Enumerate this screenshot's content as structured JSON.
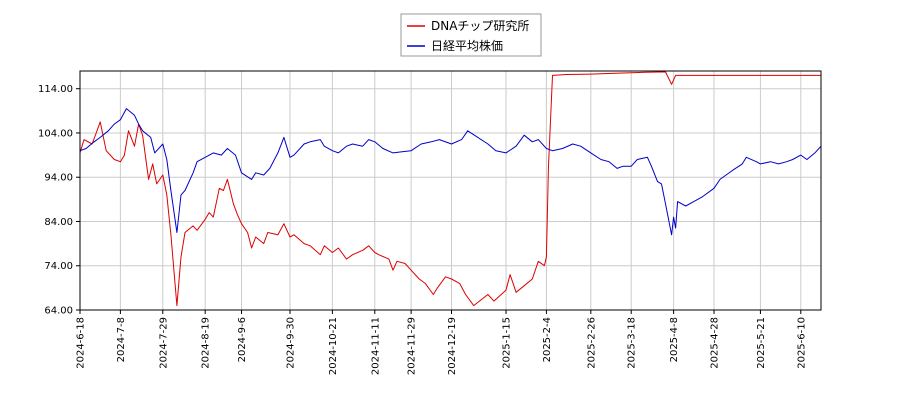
{
  "chart_data": {
    "type": "line",
    "title": "",
    "xlabel": "",
    "ylabel": "",
    "ylim": [
      64,
      118
    ],
    "y_ticks": [
      "64.00",
      "74.00",
      "84.00",
      "94.00",
      "104.00",
      "114.00"
    ],
    "x_ticks": [
      "2024-6-18",
      "2024-7-8",
      "2024-7-29",
      "2024-8-19",
      "2024-9-6",
      "2024-9-30",
      "2024-10-21",
      "2024-11-11",
      "2024-11-29",
      "2024-12-19",
      "2025-1-15",
      "2025-2-4",
      "2025-2-26",
      "2025-3-18",
      "2025-4-8",
      "2025-4-28",
      "2025-5-21",
      "2025-6-10"
    ],
    "x_range": [
      "2024-06-18",
      "2025-06-20"
    ],
    "grid": true,
    "legend_position": "top-center",
    "series": [
      {
        "name": "DNAチップ研究所",
        "color": "#dd0000",
        "points": [
          [
            "2024-06-18",
            99.5
          ],
          [
            "2024-06-20",
            102.5
          ],
          [
            "2024-06-24",
            101.5
          ],
          [
            "2024-06-26",
            104.0
          ],
          [
            "2024-06-28",
            106.5
          ],
          [
            "2024-07-01",
            100.0
          ],
          [
            "2024-07-03",
            99.0
          ],
          [
            "2024-07-05",
            98.0
          ],
          [
            "2024-07-08",
            97.5
          ],
          [
            "2024-07-10",
            99.0
          ],
          [
            "2024-07-12",
            104.5
          ],
          [
            "2024-07-15",
            101.0
          ],
          [
            "2024-07-17",
            106.0
          ],
          [
            "2024-07-19",
            103.5
          ],
          [
            "2024-07-22",
            93.5
          ],
          [
            "2024-07-24",
            97.0
          ],
          [
            "2024-07-26",
            92.5
          ],
          [
            "2024-07-29",
            94.5
          ],
          [
            "2024-07-31",
            90.0
          ],
          [
            "2024-08-02",
            81.0
          ],
          [
            "2024-08-05",
            65.0
          ],
          [
            "2024-08-07",
            76.0
          ],
          [
            "2024-08-09",
            81.5
          ],
          [
            "2024-08-13",
            83.0
          ],
          [
            "2024-08-15",
            82.0
          ],
          [
            "2024-08-19",
            84.5
          ],
          [
            "2024-08-21",
            86.0
          ],
          [
            "2024-08-23",
            85.0
          ],
          [
            "2024-08-26",
            91.5
          ],
          [
            "2024-08-28",
            91.0
          ],
          [
            "2024-08-30",
            93.5
          ],
          [
            "2024-09-02",
            88.0
          ],
          [
            "2024-09-04",
            85.5
          ],
          [
            "2024-09-06",
            83.5
          ],
          [
            "2024-09-09",
            81.5
          ],
          [
            "2024-09-11",
            78.0
          ],
          [
            "2024-09-13",
            80.5
          ],
          [
            "2024-09-17",
            79.0
          ],
          [
            "2024-09-19",
            81.5
          ],
          [
            "2024-09-24",
            81.0
          ],
          [
            "2024-09-27",
            83.5
          ],
          [
            "2024-09-30",
            80.5
          ],
          [
            "2024-10-02",
            81.0
          ],
          [
            "2024-10-07",
            79.0
          ],
          [
            "2024-10-10",
            78.5
          ],
          [
            "2024-10-15",
            76.5
          ],
          [
            "2024-10-17",
            78.5
          ],
          [
            "2024-10-21",
            77.0
          ],
          [
            "2024-10-24",
            78.0
          ],
          [
            "2024-10-28",
            75.5
          ],
          [
            "2024-10-31",
            76.5
          ],
          [
            "2024-11-05",
            77.5
          ],
          [
            "2024-11-08",
            78.5
          ],
          [
            "2024-11-11",
            77.0
          ],
          [
            "2024-11-13",
            76.5
          ],
          [
            "2024-11-18",
            75.5
          ],
          [
            "2024-11-20",
            73.0
          ],
          [
            "2024-11-22",
            75.0
          ],
          [
            "2024-11-26",
            74.5
          ],
          [
            "2024-11-29",
            73.0
          ],
          [
            "2024-12-03",
            71.0
          ],
          [
            "2024-12-06",
            70.0
          ],
          [
            "2024-12-10",
            67.5
          ],
          [
            "2024-12-12",
            69.0
          ],
          [
            "2024-12-16",
            71.5
          ],
          [
            "2024-12-19",
            71.0
          ],
          [
            "2024-12-23",
            70.0
          ],
          [
            "2024-12-26",
            67.5
          ],
          [
            "2024-12-30",
            65.0
          ],
          [
            "2025-01-06",
            67.5
          ],
          [
            "2025-01-09",
            66.0
          ],
          [
            "2025-01-15",
            68.5
          ],
          [
            "2025-01-17",
            72.0
          ],
          [
            "2025-01-20",
            68.0
          ],
          [
            "2025-01-24",
            69.5
          ],
          [
            "2025-01-28",
            71.0
          ],
          [
            "2025-01-31",
            75.0
          ],
          [
            "2025-02-03",
            74.0
          ],
          [
            "2025-02-04",
            76.0
          ],
          [
            "2025-02-05",
            96.0
          ],
          [
            "2025-02-07",
            117.0
          ],
          [
            "2025-02-14",
            117.2
          ],
          [
            "2025-02-26",
            117.3
          ],
          [
            "2025-03-10",
            117.5
          ],
          [
            "2025-03-25",
            117.7
          ],
          [
            "2025-04-04",
            117.8
          ],
          [
            "2025-04-07",
            115.0
          ],
          [
            "2025-04-09",
            117.0
          ],
          [
            "2025-04-28",
            117.0
          ],
          [
            "2025-05-21",
            117.0
          ],
          [
            "2025-06-20",
            117.0
          ]
        ]
      },
      {
        "name": "日経平均株価",
        "color": "#0000cc",
        "points": [
          [
            "2024-06-18",
            100.0
          ],
          [
            "2024-06-21",
            100.5
          ],
          [
            "2024-06-25",
            102.0
          ],
          [
            "2024-06-28",
            103.0
          ],
          [
            "2024-07-02",
            104.5
          ],
          [
            "2024-07-05",
            106.0
          ],
          [
            "2024-07-08",
            107.0
          ],
          [
            "2024-07-11",
            109.5
          ],
          [
            "2024-07-15",
            108.0
          ],
          [
            "2024-07-17",
            106.0
          ],
          [
            "2024-07-19",
            104.5
          ],
          [
            "2024-07-23",
            103.0
          ],
          [
            "2024-07-25",
            99.5
          ],
          [
            "2024-07-29",
            101.5
          ],
          [
            "2024-07-31",
            98.0
          ],
          [
            "2024-08-02",
            91.0
          ],
          [
            "2024-08-05",
            81.5
          ],
          [
            "2024-08-07",
            90.0
          ],
          [
            "2024-08-09",
            91.0
          ],
          [
            "2024-08-13",
            95.0
          ],
          [
            "2024-08-15",
            97.5
          ],
          [
            "2024-08-19",
            98.5
          ],
          [
            "2024-08-23",
            99.5
          ],
          [
            "2024-08-27",
            99.0
          ],
          [
            "2024-08-30",
            100.5
          ],
          [
            "2024-09-03",
            99.0
          ],
          [
            "2024-09-06",
            95.0
          ],
          [
            "2024-09-11",
            93.5
          ],
          [
            "2024-09-13",
            95.0
          ],
          [
            "2024-09-17",
            94.5
          ],
          [
            "2024-09-20",
            96.0
          ],
          [
            "2024-09-24",
            99.5
          ],
          [
            "2024-09-27",
            103.0
          ],
          [
            "2024-09-30",
            98.5
          ],
          [
            "2024-10-02",
            99.0
          ],
          [
            "2024-10-07",
            101.5
          ],
          [
            "2024-10-10",
            102.0
          ],
          [
            "2024-10-15",
            102.5
          ],
          [
            "2024-10-17",
            101.0
          ],
          [
            "2024-10-21",
            100.0
          ],
          [
            "2024-10-24",
            99.5
          ],
          [
            "2024-10-28",
            101.0
          ],
          [
            "2024-10-31",
            101.5
          ],
          [
            "2024-11-05",
            101.0
          ],
          [
            "2024-11-08",
            102.5
          ],
          [
            "2024-11-11",
            102.0
          ],
          [
            "2024-11-15",
            100.5
          ],
          [
            "2024-11-20",
            99.5
          ],
          [
            "2024-11-25",
            99.8
          ],
          [
            "2024-11-29",
            100.0
          ],
          [
            "2024-12-04",
            101.5
          ],
          [
            "2024-12-09",
            102.0
          ],
          [
            "2024-12-13",
            102.5
          ],
          [
            "2024-12-19",
            101.5
          ],
          [
            "2024-12-24",
            102.5
          ],
          [
            "2024-12-27",
            104.5
          ],
          [
            "2025-01-06",
            101.5
          ],
          [
            "2025-01-10",
            100.0
          ],
          [
            "2025-01-15",
            99.5
          ],
          [
            "2025-01-20",
            101.0
          ],
          [
            "2025-01-24",
            103.5
          ],
          [
            "2025-01-28",
            102.0
          ],
          [
            "2025-01-31",
            102.5
          ],
          [
            "2025-02-04",
            100.5
          ],
          [
            "2025-02-07",
            100.0
          ],
          [
            "2025-02-12",
            100.5
          ],
          [
            "2025-02-17",
            101.5
          ],
          [
            "2025-02-21",
            101.0
          ],
          [
            "2025-02-26",
            99.5
          ],
          [
            "2025-03-03",
            98.0
          ],
          [
            "2025-03-07",
            97.5
          ],
          [
            "2025-03-11",
            96.0
          ],
          [
            "2025-03-14",
            96.5
          ],
          [
            "2025-03-18",
            96.5
          ],
          [
            "2025-03-21",
            98.0
          ],
          [
            "2025-03-26",
            98.5
          ],
          [
            "2025-03-28",
            96.5
          ],
          [
            "2025-03-31",
            93.0
          ],
          [
            "2025-04-02",
            92.5
          ],
          [
            "2025-04-04",
            88.0
          ],
          [
            "2025-04-07",
            81.0
          ],
          [
            "2025-04-08",
            85.0
          ],
          [
            "2025-04-09",
            82.5
          ],
          [
            "2025-04-10",
            88.5
          ],
          [
            "2025-04-14",
            87.5
          ],
          [
            "2025-04-18",
            88.5
          ],
          [
            "2025-04-22",
            89.5
          ],
          [
            "2025-04-28",
            91.5
          ],
          [
            "2025-05-01",
            93.5
          ],
          [
            "2025-05-07",
            95.5
          ],
          [
            "2025-05-12",
            97.0
          ],
          [
            "2025-05-14",
            98.5
          ],
          [
            "2025-05-19",
            97.5
          ],
          [
            "2025-05-21",
            97.0
          ],
          [
            "2025-05-26",
            97.5
          ],
          [
            "2025-05-30",
            97.0
          ],
          [
            "2025-06-03",
            97.5
          ],
          [
            "2025-06-06",
            98.0
          ],
          [
            "2025-06-10",
            99.0
          ],
          [
            "2025-06-13",
            98.0
          ],
          [
            "2025-06-17",
            99.5
          ],
          [
            "2025-06-20",
            101.0
          ]
        ]
      }
    ]
  }
}
